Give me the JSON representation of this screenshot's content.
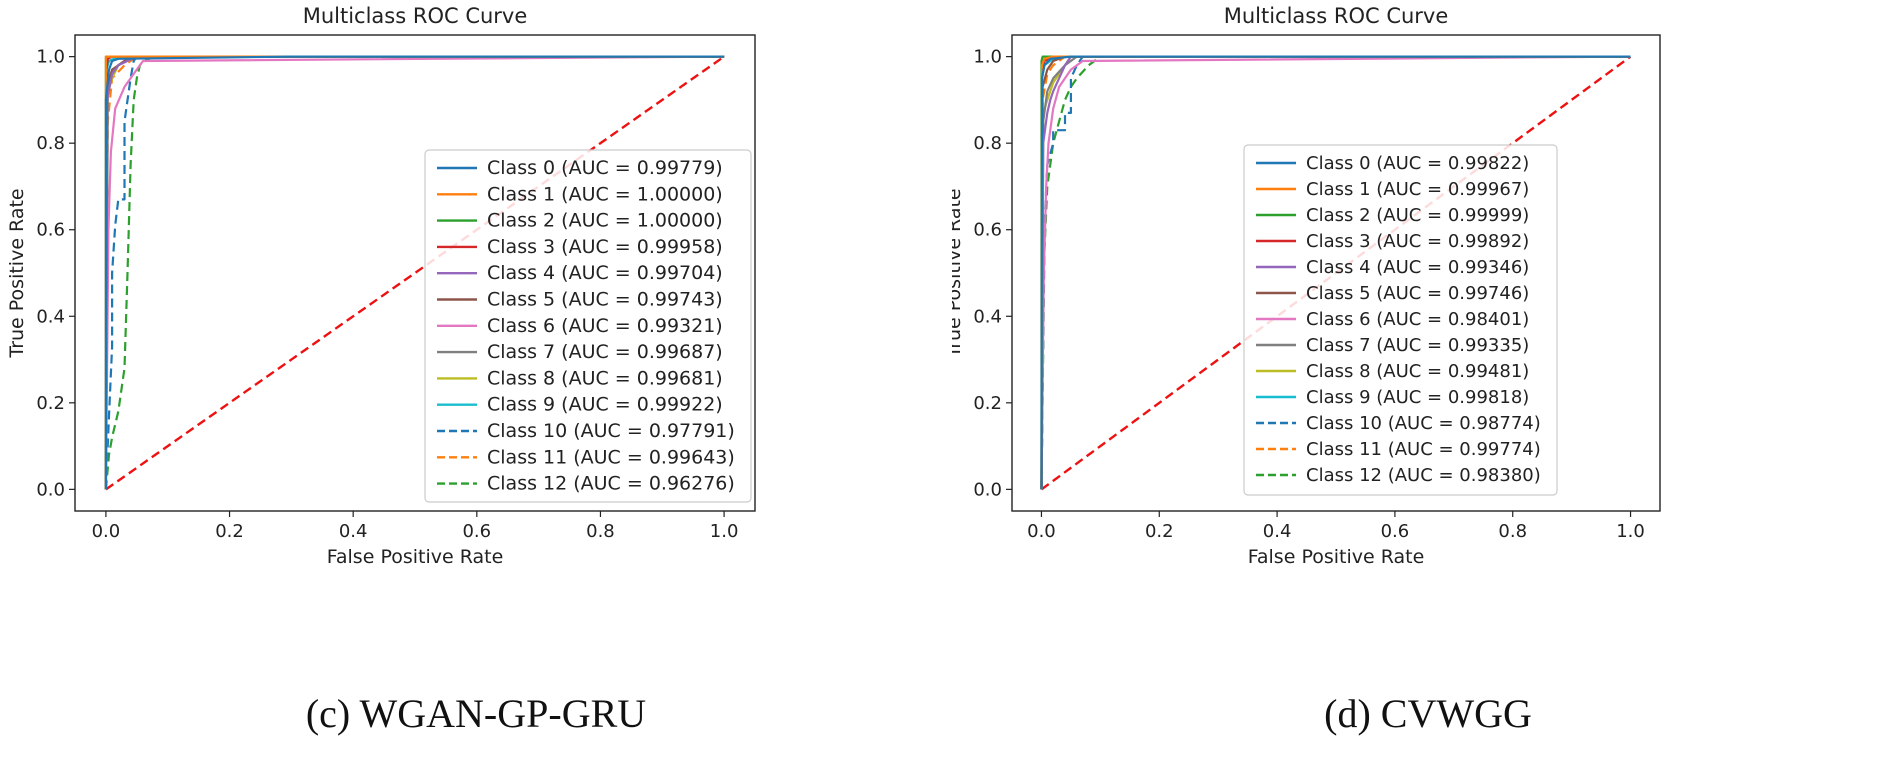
{
  "chart_data": [
    {
      "type": "line",
      "title": "Multiclass ROC Curve",
      "xlabel": "False Positive Rate",
      "ylabel": "True Positive Rate",
      "xlim": [
        -0.05,
        1.05
      ],
      "ylim": [
        -0.05,
        1.05
      ],
      "x_ticks": [
        "0.0",
        "0.2",
        "0.4",
        "0.6",
        "0.8",
        "1.0"
      ],
      "y_ticks": [
        "0.0",
        "0.2",
        "0.4",
        "0.6",
        "0.8",
        "1.0"
      ],
      "legend_position": "lower-right",
      "caption": "(c) WGAN-GP-GRU",
      "series": [
        {
          "name": "Class 0 (AUC = 0.99779)",
          "color": "#1f77b4",
          "dash": false,
          "x": [
            0,
            0,
            0.005,
            0.01,
            0.02,
            0.3,
            1.0
          ],
          "y": [
            0,
            0.9,
            0.97,
            0.99,
            0.995,
            1.0,
            1.0
          ]
        },
        {
          "name": "Class 1 (AUC = 1.00000)",
          "color": "#ff7f0e",
          "dash": false,
          "x": [
            0,
            0,
            1.0
          ],
          "y": [
            0,
            1.0,
            1.0
          ]
        },
        {
          "name": "Class 2 (AUC = 1.00000)",
          "color": "#2ca02c",
          "dash": false,
          "x": [
            0,
            0,
            1.0
          ],
          "y": [
            0,
            1.0,
            1.0
          ]
        },
        {
          "name": "Class 3 (AUC = 0.99958)",
          "color": "#d62728",
          "dash": false,
          "x": [
            0,
            0.001,
            0.003,
            0.01,
            1.0
          ],
          "y": [
            0,
            0.97,
            0.995,
            1.0,
            1.0
          ]
        },
        {
          "name": "Class 4 (AUC = 0.99704)",
          "color": "#9467bd",
          "dash": false,
          "x": [
            0,
            0.002,
            0.01,
            0.02,
            0.05,
            1.0
          ],
          "y": [
            0,
            0.9,
            0.96,
            0.98,
            1.0,
            1.0
          ]
        },
        {
          "name": "Class 5 (AUC = 0.99743)",
          "color": "#8c564b",
          "dash": false,
          "x": [
            0,
            0.002,
            0.01,
            0.03,
            0.05,
            1.0
          ],
          "y": [
            0,
            0.93,
            0.97,
            0.99,
            1.0,
            1.0
          ]
        },
        {
          "name": "Class 6 (AUC = 0.99321)",
          "color": "#e377c2",
          "dash": false,
          "x": [
            0,
            0.004,
            0.008,
            0.015,
            0.03,
            0.045,
            0.06,
            1.0
          ],
          "y": [
            0,
            0.6,
            0.78,
            0.88,
            0.93,
            0.96,
            0.99,
            1.0
          ]
        },
        {
          "name": "Class 7 (AUC = 0.99687)",
          "color": "#7f7f7f",
          "dash": false,
          "x": [
            0,
            0.003,
            0.01,
            0.02,
            0.04,
            1.0
          ],
          "y": [
            0,
            0.92,
            0.96,
            0.98,
            1.0,
            1.0
          ]
        },
        {
          "name": "Class 8 (AUC = 0.99681)",
          "color": "#bcbd22",
          "dash": false,
          "x": [
            0,
            0.002,
            0.01,
            0.02,
            0.04,
            1.0
          ],
          "y": [
            0,
            0.91,
            0.95,
            0.98,
            1.0,
            1.0
          ]
        },
        {
          "name": "Class 9 (AUC = 0.99922)",
          "color": "#17becf",
          "dash": false,
          "x": [
            0,
            0.001,
            0.005,
            0.02,
            1.0
          ],
          "y": [
            0,
            0.97,
            0.99,
            1.0,
            1.0
          ]
        },
        {
          "name": "Class 10 (AUC = 0.97791)",
          "color": "#1f77b4",
          "dash": true,
          "x": [
            0,
            0.005,
            0.01,
            0.01,
            0.015,
            0.02,
            0.02,
            0.03,
            0.03,
            0.04,
            0.045,
            0.05,
            1.0
          ],
          "y": [
            0,
            0.17,
            0.33,
            0.5,
            0.61,
            0.67,
            0.67,
            0.67,
            0.85,
            0.95,
            0.99,
            1.0,
            1.0
          ]
        },
        {
          "name": "Class 11 (AUC = 0.99643)",
          "color": "#ff7f0e",
          "dash": true,
          "x": [
            0,
            0.001,
            0.003,
            0.01,
            0.03,
            0.05,
            1.0
          ],
          "y": [
            0,
            0.5,
            0.85,
            0.95,
            0.98,
            1.0,
            1.0
          ]
        },
        {
          "name": "Class 12 (AUC = 0.96276)",
          "color": "#2ca02c",
          "dash": true,
          "x": [
            0,
            0.005,
            0.01,
            0.02,
            0.03,
            0.035,
            0.04,
            0.045,
            0.05,
            0.055,
            0.06,
            0.08,
            1.0
          ],
          "y": [
            0,
            0.08,
            0.12,
            0.18,
            0.28,
            0.5,
            0.75,
            0.9,
            0.95,
            0.98,
            0.99,
            1.0,
            1.0
          ]
        },
        {
          "name": "",
          "color": "#ee1111",
          "dash": true,
          "x": [
            0,
            1
          ],
          "y": [
            0,
            1
          ]
        }
      ]
    },
    {
      "type": "line",
      "title": "Multiclass ROC Curve",
      "xlabel": "False Positive Rate",
      "ylabel": "True Positive Rate",
      "xlim": [
        -0.05,
        1.05
      ],
      "ylim": [
        -0.05,
        1.05
      ],
      "x_ticks": [
        "0.0",
        "0.2",
        "0.4",
        "0.6",
        "0.8",
        "1.0"
      ],
      "y_ticks": [
        "0.0",
        "0.2",
        "0.4",
        "0.6",
        "0.8",
        "1.0"
      ],
      "legend_position": "lower-right",
      "caption": "(d) CVWGG",
      "series": [
        {
          "name": "Class 0 (AUC = 0.99822)",
          "color": "#1f77b4",
          "dash": false,
          "x": [
            0,
            0.001,
            0.005,
            0.015,
            0.05,
            1.0
          ],
          "y": [
            0,
            0.95,
            0.98,
            0.995,
            1.0,
            1.0
          ]
        },
        {
          "name": "Class 1 (AUC = 0.99967)",
          "color": "#ff7f0e",
          "dash": false,
          "x": [
            0,
            0.001,
            0.005,
            0.02,
            1.0
          ],
          "y": [
            0,
            0.98,
            0.995,
            1.0,
            1.0
          ]
        },
        {
          "name": "Class 2 (AUC = 0.99999)",
          "color": "#2ca02c",
          "dash": false,
          "x": [
            0,
            0,
            0.002,
            1.0
          ],
          "y": [
            0,
            0.99,
            1.0,
            1.0
          ]
        },
        {
          "name": "Class 3 (AUC = 0.99892)",
          "color": "#d62728",
          "dash": false,
          "x": [
            0,
            0.001,
            0.005,
            0.02,
            1.0
          ],
          "y": [
            0,
            0.96,
            0.99,
            1.0,
            1.0
          ]
        },
        {
          "name": "Class 4 (AUC = 0.99346)",
          "color": "#9467bd",
          "dash": false,
          "x": [
            0,
            0.003,
            0.01,
            0.015,
            0.02,
            0.03,
            0.04,
            0.05,
            1.0
          ],
          "y": [
            0,
            0.8,
            0.87,
            0.9,
            0.92,
            0.95,
            0.98,
            1.0,
            1.0
          ]
        },
        {
          "name": "Class 5 (AUC = 0.99746)",
          "color": "#8c564b",
          "dash": false,
          "x": [
            0,
            0.002,
            0.01,
            0.02,
            0.04,
            1.0
          ],
          "y": [
            0,
            0.93,
            0.97,
            0.99,
            1.0,
            1.0
          ]
        },
        {
          "name": "Class 6 (AUC = 0.98401)",
          "color": "#e377c2",
          "dash": false,
          "x": [
            0,
            0.004,
            0.008,
            0.012,
            0.02,
            0.03,
            0.05,
            0.07,
            1.0
          ],
          "y": [
            0,
            0.5,
            0.7,
            0.8,
            0.88,
            0.93,
            0.97,
            0.99,
            1.0
          ]
        },
        {
          "name": "Class 7 (AUC = 0.99335)",
          "color": "#7f7f7f",
          "dash": false,
          "x": [
            0,
            0.003,
            0.01,
            0.02,
            0.04,
            0.06,
            1.0
          ],
          "y": [
            0,
            0.85,
            0.92,
            0.95,
            0.98,
            1.0,
            1.0
          ]
        },
        {
          "name": "Class 8 (AUC = 0.99481)",
          "color": "#bcbd22",
          "dash": false,
          "x": [
            0,
            0.003,
            0.01,
            0.02,
            0.04,
            0.05,
            1.0
          ],
          "y": [
            0,
            0.87,
            0.9,
            0.94,
            0.98,
            1.0,
            1.0
          ]
        },
        {
          "name": "Class 9 (AUC = 0.99818)",
          "color": "#17becf",
          "dash": false,
          "x": [
            0,
            0.001,
            0.005,
            0.02,
            0.04,
            1.0
          ],
          "y": [
            0,
            0.95,
            0.98,
            0.995,
            1.0,
            1.0
          ]
        },
        {
          "name": "Class 10 (AUC = 0.98774)",
          "color": "#1f77b4",
          "dash": true,
          "x": [
            0,
            0.005,
            0.01,
            0.02,
            0.02,
            0.04,
            0.04,
            0.05,
            0.05,
            0.06,
            0.07,
            1.0
          ],
          "y": [
            0,
            0.6,
            0.75,
            0.8,
            0.83,
            0.83,
            0.87,
            0.87,
            0.95,
            0.98,
            1.0,
            1.0
          ]
        },
        {
          "name": "Class 11 (AUC = 0.99774)",
          "color": "#ff7f0e",
          "dash": true,
          "x": [
            0,
            0.002,
            0.01,
            0.02,
            0.04,
            1.0
          ],
          "y": [
            0,
            0.9,
            0.96,
            0.98,
            1.0,
            1.0
          ]
        },
        {
          "name": "Class 12 (AUC = 0.98380)",
          "color": "#2ca02c",
          "dash": true,
          "x": [
            0,
            0.005,
            0.01,
            0.02,
            0.03,
            0.04,
            0.05,
            0.06,
            0.08,
            0.1,
            1.0
          ],
          "y": [
            0,
            0.55,
            0.7,
            0.8,
            0.85,
            0.9,
            0.93,
            0.95,
            0.98,
            1.0,
            1.0
          ]
        },
        {
          "name": "",
          "color": "#ee1111",
          "dash": true,
          "x": [
            0,
            1
          ],
          "y": [
            0,
            1
          ]
        }
      ]
    }
  ]
}
